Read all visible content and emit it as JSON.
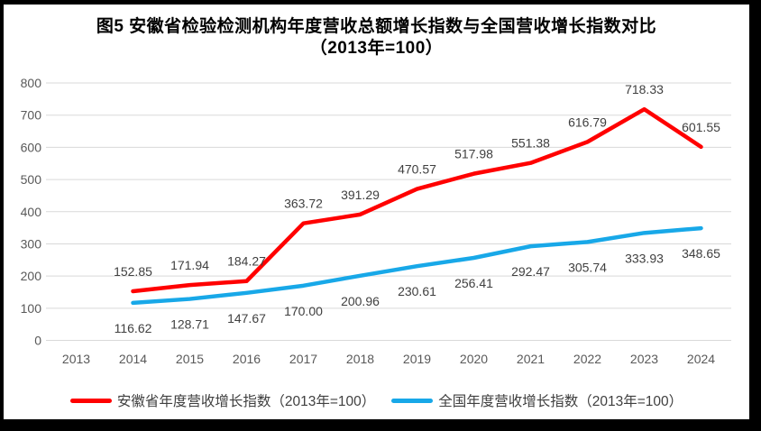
{
  "title": {
    "line1": "图5  安徽省检验检测机构年度营收总额增长指数与全国营收增长指数对比",
    "line2": "（2013年=100）"
  },
  "chart_data": {
    "type": "line",
    "categories": [
      "2013",
      "2014",
      "2015",
      "2016",
      "2017",
      "2018",
      "2019",
      "2020",
      "2021",
      "2022",
      "2023",
      "2024"
    ],
    "series": [
      {
        "name": "安徽省年度营收增长指数（2013年=100）",
        "color": "#FF0000",
        "start_index": 1,
        "label_position": "above",
        "values": [
          152.85,
          171.94,
          184.27,
          363.72,
          391.29,
          470.57,
          517.98,
          551.38,
          616.79,
          718.33,
          601.55
        ]
      },
      {
        "name": "全国年度营收增长指数（2013年=100）",
        "color": "#18A8E8",
        "start_index": 1,
        "label_position": "below",
        "values": [
          116.62,
          128.71,
          147.67,
          170.0,
          200.96,
          230.61,
          256.41,
          292.47,
          305.74,
          333.93,
          348.65
        ]
      }
    ],
    "ylim": [
      0,
      800
    ],
    "ytick_step": 100,
    "grid": true,
    "grid_color": "#D9D9D9",
    "tick_label_color": "#595959",
    "data_label_color": "#404040",
    "legend_position": "bottom",
    "xlabel": "",
    "ylabel": ""
  }
}
